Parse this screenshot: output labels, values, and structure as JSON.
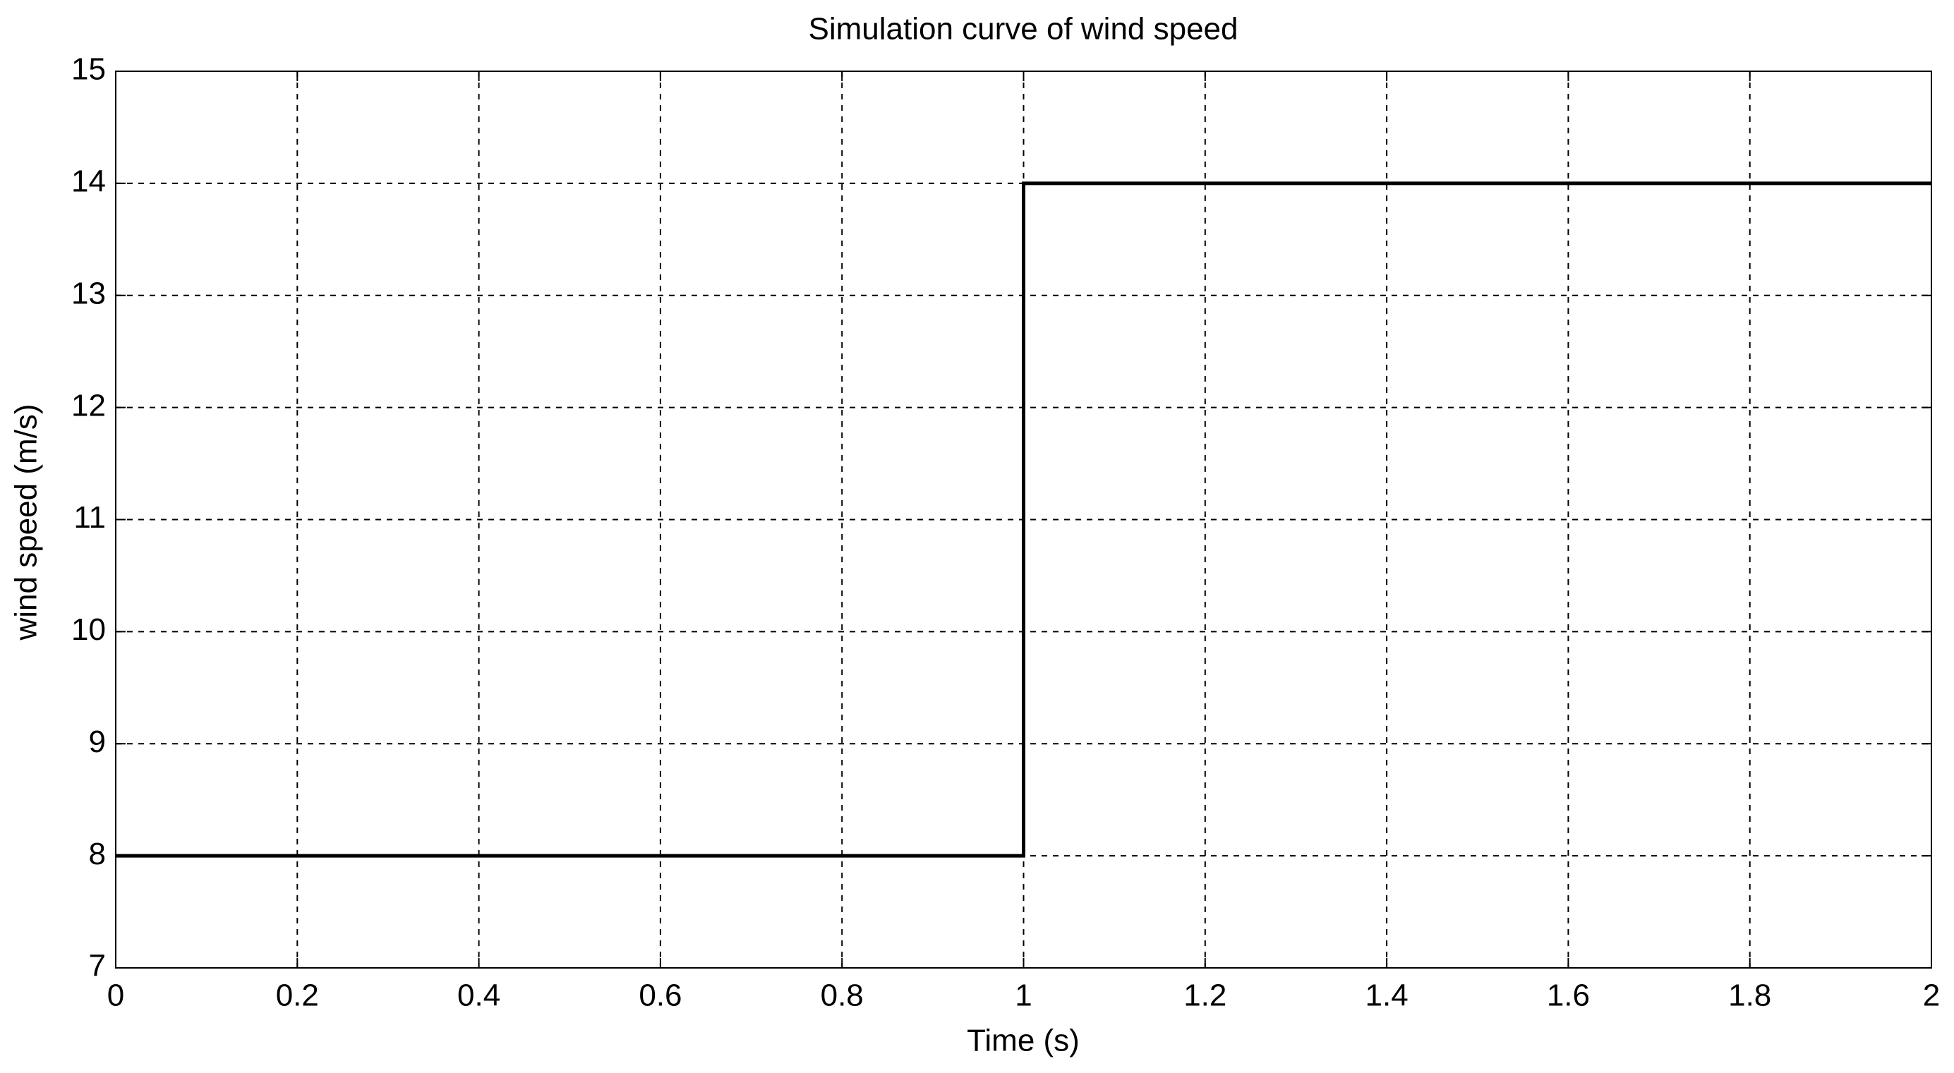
{
  "chart_data": {
    "type": "line",
    "title": "Simulation curve of wind speed",
    "x_label": "Time (s)",
    "y_label": "wind speed (m/s)",
    "x": [
      0,
      1,
      1,
      2
    ],
    "series": [
      {
        "name": "wind speed",
        "color": "#000000",
        "values": [
          8,
          8,
          14,
          14
        ]
      }
    ],
    "xlim": [
      0,
      2
    ],
    "ylim": [
      7,
      15
    ],
    "xticks": [
      0,
      0.2,
      0.4,
      0.6,
      0.8,
      1,
      1.2,
      1.4,
      1.6,
      1.8,
      2
    ],
    "yticks": [
      7,
      8,
      9,
      10,
      11,
      12,
      13,
      14,
      15
    ],
    "grid": true
  }
}
